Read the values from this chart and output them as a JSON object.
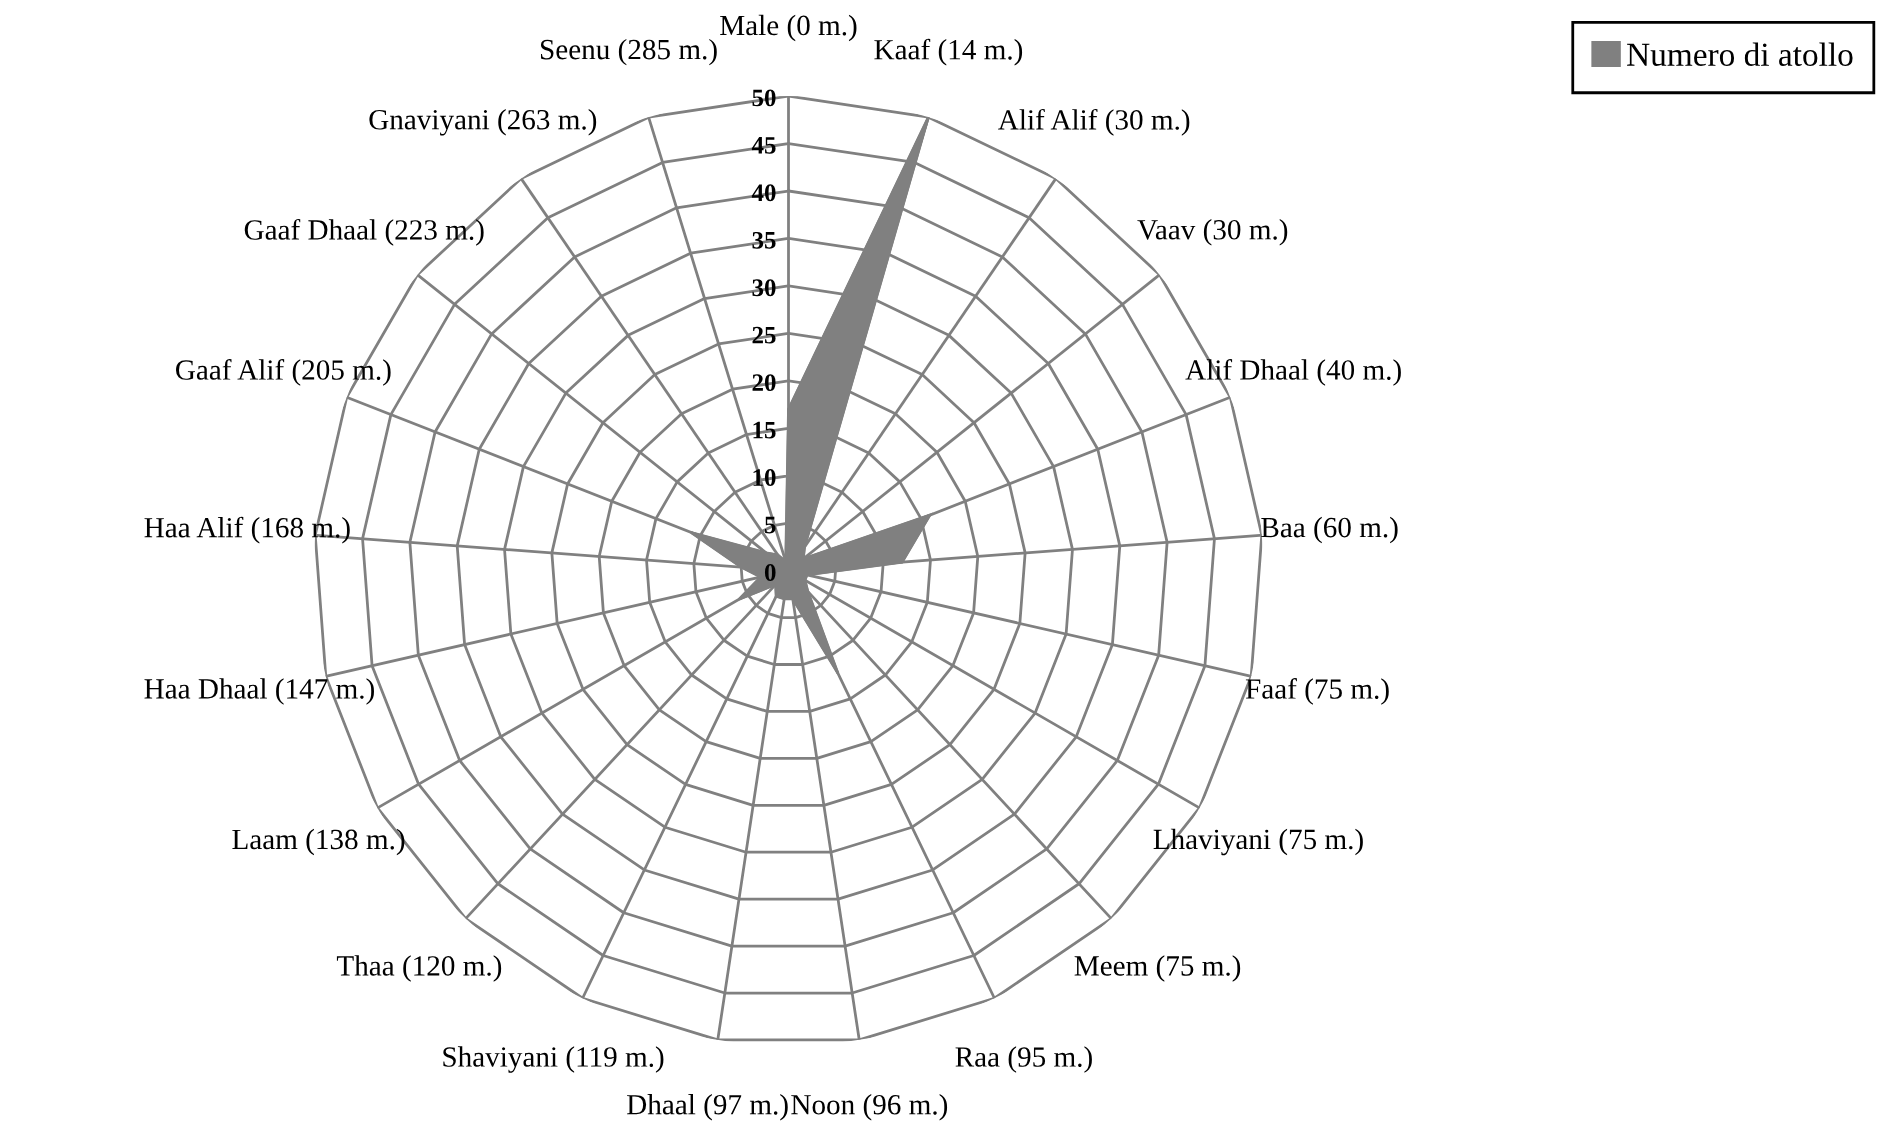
{
  "chart_data": {
    "type": "radar",
    "categories": [
      "Male (0 m.)",
      "Kaaf (14 m.)",
      "Alif Alif (30 m.)",
      "Vaav (30 m.)",
      "Alif Dhaal (40 m.)",
      "Baa (60 m.)",
      "Faaf (75 m.)",
      "Lhaviyani (75 m.)",
      "Meem (75 m.)",
      "Raa (95 m.)",
      "Noon (96 m.)",
      "Dhaal (97 m.)",
      "Shaviyani (119 m.)",
      "Thaa (120 m.)",
      "Laam (138 m.)",
      "Haa Dhaal (147 m.)",
      "Haa Alif (168 m.)",
      "Gaaf Alif (205 m.)",
      "Gaaf Dhaal (223 m.)",
      "Gnaviyani (263 m.)",
      "Seenu (285 m.)"
    ],
    "series": [
      {
        "name": "Numero di atollo",
        "color": "#808080",
        "values": [
          17,
          50,
          3,
          2,
          16,
          12,
          2,
          2,
          3,
          12,
          3,
          3,
          3,
          2,
          6,
          3,
          5,
          11,
          3,
          2,
          1
        ]
      }
    ],
    "ylim": [
      0,
      50
    ],
    "yticks": [
      0,
      5,
      10,
      15,
      20,
      25,
      30,
      35,
      40,
      45,
      50
    ],
    "grid": true,
    "legend": "top right"
  }
}
